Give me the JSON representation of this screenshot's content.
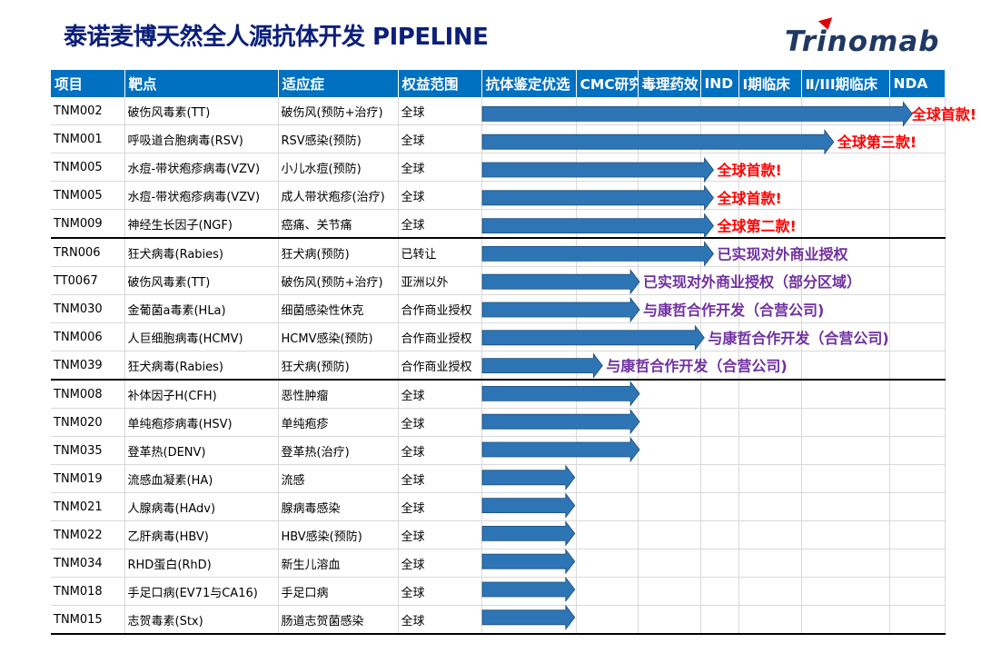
{
  "title": "泰诺麦博天然全人源抗体开发 PIPELINE",
  "logo_text": "Trinomab",
  "colors": {
    "header_bg": "#0070c0",
    "arrow": "#2e75b6",
    "note_red": "#ff0000",
    "note_purple": "#7030a0",
    "title": "#0b1f7a"
  },
  "headers": [
    "项目",
    "靶点",
    "适应症",
    "权益范围",
    "抗体鉴定优选",
    "CMC研究",
    "毒理药效",
    "IND",
    "Ⅰ期临床",
    "Ⅱ/III期临床",
    "NDA"
  ],
  "rows": [
    {
      "project": "TNM002",
      "target": "破伤风毒素(TT)",
      "indication": "破伤风(预防+治疗)",
      "rights": "全球",
      "progress": 0.93,
      "note": "全球首款!",
      "note_color": "red"
    },
    {
      "project": "TNM001",
      "target": "呼吸道合胞病毒(RSV)",
      "indication": "RSV感染(预防)",
      "rights": "全球",
      "progress": 0.76,
      "note": "全球第三款!",
      "note_color": "red"
    },
    {
      "project": "TNM005",
      "target": "水痘-带状疱疹病毒(VZV)",
      "indication": "小儿水痘(预防)",
      "rights": "全球",
      "progress": 0.5,
      "note": "全球首款!",
      "note_color": "red"
    },
    {
      "project": "TNM005",
      "target": "水痘-带状疱疹病毒(VZV)",
      "indication": "成人带状疱疹(治疗)",
      "rights": "全球",
      "progress": 0.5,
      "note": "全球首款!",
      "note_color": "red"
    },
    {
      "project": "TNM009",
      "target": "神经生长因子(NGF)",
      "indication": "癌痛、关节痛",
      "rights": "全球",
      "progress": 0.5,
      "note": "全球第二款!",
      "note_color": "red"
    },
    {
      "project": "TRN006",
      "target": "狂犬病毒(Rabies)",
      "indication": "狂犬病(预防)",
      "rights": "已转让",
      "progress": 0.5,
      "note": "已实现对外商业授权",
      "note_color": "purple"
    },
    {
      "project": "TT0067",
      "target": "破伤风毒素(TT)",
      "indication": "破伤风(预防+治疗)",
      "rights": "亚洲以外",
      "progress": 0.34,
      "note": "已实现对外商业授权（部分区域）",
      "note_color": "purple"
    },
    {
      "project": "TNM030",
      "target": "金葡菌a毒素(HLa)",
      "indication": "细菌感染性休克",
      "rights": "合作商业授权",
      "progress": 0.34,
      "note": "与康哲合作开发（合营公司)",
      "note_color": "purple"
    },
    {
      "project": "TNM006",
      "target": "人巨细胞病毒(HCMV)",
      "indication": "HCMV感染(预防)",
      "rights": "合作商业授权",
      "progress": 0.48,
      "note": "与康哲合作开发（合营公司)",
      "note_color": "purple"
    },
    {
      "project": "TNM039",
      "target": "狂犬病毒(Rabies)",
      "indication": "狂犬病(预防)",
      "rights": "合作商业授权",
      "progress": 0.26,
      "note": "与康哲合作开发（合营公司)",
      "note_color": "purple"
    },
    {
      "project": "TNM008",
      "target": "补体因子H(CFH)",
      "indication": "恶性肿瘤",
      "rights": "全球",
      "progress": 0.34,
      "note": "",
      "note_color": ""
    },
    {
      "project": "TNM020",
      "target": "单纯疱疹病毒(HSV)",
      "indication": "单纯疱疹",
      "rights": "全球",
      "progress": 0.34,
      "note": "",
      "note_color": ""
    },
    {
      "project": "TNM035",
      "target": "登革热(DENV)",
      "indication": "登革热(治疗)",
      "rights": "全球",
      "progress": 0.34,
      "note": "",
      "note_color": ""
    },
    {
      "project": "TNM019",
      "target": "流感血凝素(HA)",
      "indication": "流感",
      "rights": "全球",
      "progress": 0.2,
      "note": "",
      "note_color": ""
    },
    {
      "project": "TNM021",
      "target": "人腺病毒(HAdv)",
      "indication": "腺病毒感染",
      "rights": "全球",
      "progress": 0.2,
      "note": "",
      "note_color": ""
    },
    {
      "project": "TNM022",
      "target": "乙肝病毒(HBV)",
      "indication": "HBV感染(预防)",
      "rights": "全球",
      "progress": 0.2,
      "note": "",
      "note_color": ""
    },
    {
      "project": "TNM034",
      "target": "RHD蛋白(RhD)",
      "indication": "新生儿溶血",
      "rights": "全球",
      "progress": 0.2,
      "note": "",
      "note_color": ""
    },
    {
      "project": "TNM018",
      "target": "手足口病(EV71与CA16)",
      "indication": "手足口病",
      "rights": "全球",
      "progress": 0.2,
      "note": "",
      "note_color": ""
    },
    {
      "project": "TNM015",
      "target": "志贺毒素(Stx)",
      "indication": "肠道志贺菌感染",
      "rights": "全球",
      "progress": 0.2,
      "note": "",
      "note_color": ""
    }
  ]
}
